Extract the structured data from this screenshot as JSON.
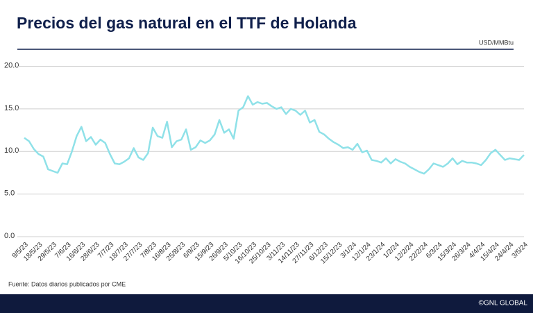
{
  "chart_data": {
    "type": "line",
    "title": "Precios del gas natural en el TTF de Holanda",
    "unit_label": "USD/MMBtu",
    "source": "Fuente: Datos diarios publicados por CME",
    "categories": [
      "9/5/23",
      null,
      null,
      "18/5/23",
      null,
      null,
      "29/5/23",
      null,
      null,
      "7/6/23",
      null,
      null,
      "16/6/23",
      null,
      null,
      "28/6/23",
      null,
      null,
      "7/7/23",
      null,
      null,
      "18/7/23",
      null,
      null,
      "27/7/23",
      null,
      null,
      "7/8/23",
      null,
      null,
      "16/8/23",
      null,
      null,
      "25/8/23",
      null,
      null,
      "6/9/23",
      null,
      null,
      "15/9/23",
      null,
      null,
      "26/9/23",
      null,
      null,
      "5/10/23",
      null,
      null,
      "16/10/23",
      null,
      null,
      "25/10/23",
      null,
      null,
      "3/11/23",
      null,
      null,
      "14/11/23",
      null,
      null,
      "27/11/23",
      null,
      null,
      "6/12/23",
      null,
      null,
      "15/12/23",
      null,
      null,
      "3/1/24",
      null,
      null,
      "12/1/24",
      null,
      null,
      "23/1/24",
      null,
      null,
      "1/2/24",
      null,
      null,
      "12/2/24",
      null,
      null,
      "22/2/24",
      null,
      null,
      "6/3/24",
      null,
      null,
      "15/3/24",
      null,
      null,
      "26/3/24",
      null,
      null,
      "4/4/24",
      null,
      null,
      "15/4/24",
      null,
      null,
      "24/4/24",
      null,
      null,
      "3/5/24"
    ],
    "series": [
      {
        "color": "#8fe1e8",
        "values": [
          11.6,
          11.2,
          10.3,
          9.7,
          9.4,
          7.9,
          7.7,
          7.5,
          8.6,
          8.5,
          10.0,
          11.8,
          12.9,
          11.2,
          11.7,
          10.8,
          11.4,
          11.0,
          9.7,
          8.6,
          8.5,
          8.8,
          9.2,
          10.4,
          9.3,
          9.0,
          9.8,
          12.8,
          11.8,
          11.6,
          13.5,
          10.5,
          11.2,
          11.4,
          12.6,
          10.2,
          10.5,
          11.3,
          11.0,
          11.3,
          12.0,
          13.7,
          12.2,
          12.6,
          11.5,
          14.8,
          15.2,
          16.5,
          15.5,
          15.8,
          15.6,
          15.7,
          15.3,
          15.0,
          15.2,
          14.4,
          15.0,
          14.8,
          14.3,
          14.8,
          13.4,
          13.7,
          12.3,
          12.0,
          11.5,
          11.1,
          10.8,
          10.4,
          10.5,
          10.2,
          10.9,
          9.9,
          10.1,
          9.0,
          8.9,
          8.7,
          9.2,
          8.6,
          9.1,
          8.8,
          8.6,
          8.2,
          7.9,
          7.6,
          7.4,
          7.9,
          8.6,
          8.4,
          8.2,
          8.6,
          9.2,
          8.5,
          8.9,
          8.7,
          8.7,
          8.6,
          8.4,
          9.0,
          9.8,
          10.2,
          9.6,
          9.0,
          9.2,
          9.1,
          9.0,
          9.6
        ]
      }
    ],
    "ylim": [
      0,
      22
    ],
    "yticks": [
      {
        "value": 0,
        "label": "0.0"
      },
      {
        "value": 5,
        "label": "5.0"
      },
      {
        "value": 10,
        "label": "10.0"
      },
      {
        "value": 15,
        "label": "15.0"
      },
      {
        "value": 20,
        "label": "20.0"
      }
    ],
    "grid": true
  },
  "footer": "©GNL GLOBAL"
}
